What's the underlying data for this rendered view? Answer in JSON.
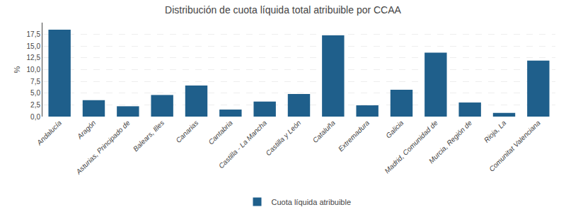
{
  "chart_data": {
    "type": "bar",
    "title": "Distribución de cuota líquida total atribuible por CCAA",
    "categories": [
      "Andalucía",
      "Aragón",
      "Asturias, Principado de",
      "Balears, Illes",
      "Canarias",
      "Cantabria",
      "Castilla - La Mancha",
      "Castilla y León",
      "Cataluña",
      "Extremadura",
      "Galicia",
      "Madrid, Comunidad de",
      "Murcia, Región de",
      "Rioja, La",
      "Comunitat Valenciana"
    ],
    "series": [
      {
        "name": "Cuota líquida atribuible",
        "color": "#1f5f8b",
        "values": [
          18.5,
          3.5,
          2.2,
          4.6,
          6.6,
          1.5,
          3.2,
          4.8,
          17.3,
          2.4,
          5.7,
          13.6,
          3.0,
          0.8,
          11.9
        ]
      }
    ],
    "ylabel": "%",
    "ylim": [
      0,
      20
    ],
    "yticks": [
      {
        "value": 0.0,
        "label": "0,0"
      },
      {
        "value": 2.5,
        "label": "2,5"
      },
      {
        "value": 5.0,
        "label": "5,0"
      },
      {
        "value": 7.5,
        "label": "7,5"
      },
      {
        "value": 10.0,
        "label": "10,0"
      },
      {
        "value": 12.5,
        "label": "12,5"
      },
      {
        "value": 15.0,
        "label": "15,0"
      },
      {
        "value": 17.5,
        "label": "17,5"
      }
    ],
    "grid": true,
    "legend": "bottom"
  }
}
